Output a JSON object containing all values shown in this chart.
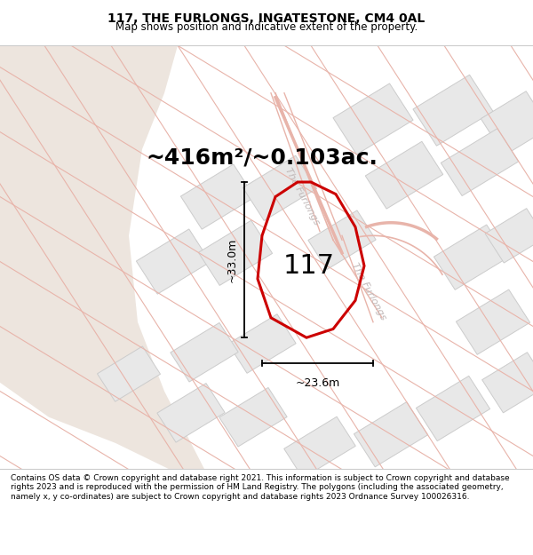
{
  "title": "117, THE FURLONGS, INGATESTONE, CM4 0AL",
  "subtitle": "Map shows position and indicative extent of the property.",
  "footer": "Contains OS data © Crown copyright and database right 2021. This information is subject to Crown copyright and database rights 2023 and is reproduced with the permission of HM Land Registry. The polygons (including the associated geometry, namely x, y co-ordinates) are subject to Crown copyright and database rights 2023 Ordnance Survey 100026316.",
  "area_text": "~416m²/~0.103ac.",
  "label_117": "117",
  "dim_vertical": "~33.0m",
  "dim_horizontal": "~23.6m",
  "map_bg": "#ffffff",
  "beige_color": "#ede5de",
  "road_line_color": "#e8b4aa",
  "block_color": "#e8e8e8",
  "block_outline": "#cccccc",
  "plot_outline": "#cc0000",
  "street_label_color": "#c0b8b8",
  "figsize": [
    6.0,
    6.25
  ],
  "dpi": 100,
  "title_fontsize": 10,
  "subtitle_fontsize": 8.5,
  "area_fontsize": 18,
  "label_fontsize": 22,
  "dim_fontsize": 9,
  "footer_fontsize": 6.5
}
